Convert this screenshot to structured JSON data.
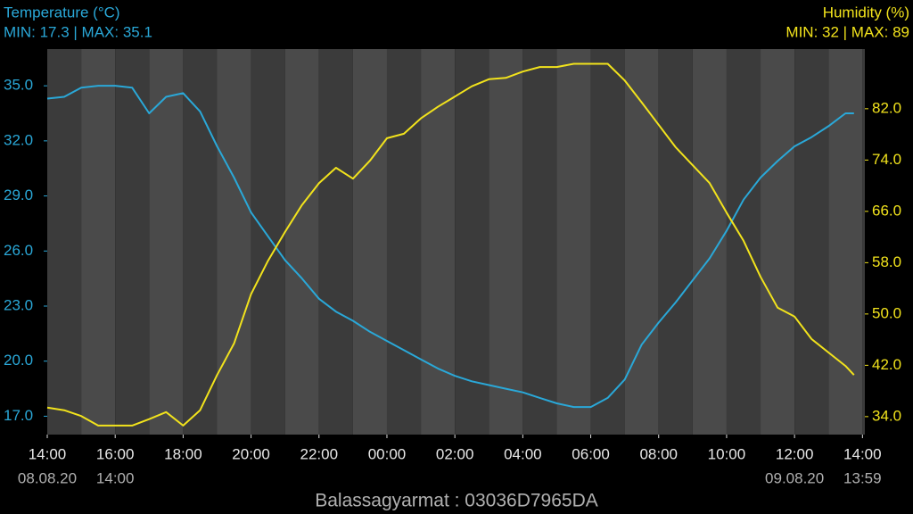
{
  "chart_data": {
    "type": "line",
    "title": "Temperature (°C)",
    "subtitle": "MIN: 17.3 | MAX: 35.1",
    "y2_title": "Humidity (%)",
    "y2_subtitle": "MIN: 32 | MAX: 89",
    "footer": "Balassagyarmat : 03036D7965DA",
    "x": [
      0,
      0.5,
      1,
      1.5,
      2,
      2.5,
      3,
      3.5,
      4,
      4.5,
      5,
      5.5,
      6,
      6.5,
      7,
      7.5,
      8,
      8.5,
      9,
      9.5,
      10,
      10.5,
      11,
      11.5,
      12,
      12.5,
      13,
      13.5,
      14,
      14.5,
      15,
      15.5,
      16,
      16.5,
      17,
      17.5,
      18,
      18.5,
      19,
      19.5,
      20,
      20.5,
      21,
      21.5,
      22,
      22.5,
      23,
      23.5,
      23.75
    ],
    "series": [
      {
        "name": "Temperature (°C)",
        "color": "#2aa8d8",
        "axis": "y",
        "values": [
          34.3,
          34.4,
          34.9,
          35.0,
          35.0,
          34.9,
          33.5,
          34.4,
          34.6,
          33.6,
          31.7,
          30.0,
          28.1,
          26.8,
          25.5,
          24.5,
          23.4,
          22.7,
          22.2,
          21.6,
          21.1,
          20.6,
          20.1,
          19.6,
          19.2,
          18.9,
          18.7,
          18.5,
          18.3,
          18.0,
          17.7,
          17.5,
          17.5,
          18.0,
          19.0,
          20.9,
          22.1,
          23.2,
          24.4,
          25.6,
          27.1,
          28.8,
          30.0,
          30.9,
          31.7,
          32.2,
          32.8,
          33.5,
          33.5
        ]
      },
      {
        "name": "Humidity (%)",
        "color": "#f2e31c",
        "axis": "y2",
        "values": [
          35.4,
          35.0,
          34.1,
          32.6,
          32.6,
          32.6,
          33.6,
          34.7,
          32.6,
          35.0,
          40.5,
          45.4,
          53.1,
          58.3,
          62.8,
          67.0,
          70.4,
          72.8,
          71.1,
          73.9,
          77.4,
          78.1,
          80.5,
          82.3,
          83.9,
          85.5,
          86.6,
          86.8,
          87.8,
          88.5,
          88.5,
          89.0,
          89.0,
          89.0,
          86.4,
          83.0,
          79.5,
          76.0,
          73.2,
          70.4,
          65.8,
          61.4,
          55.8,
          51.0,
          49.6,
          46.1,
          44.0,
          41.9,
          40.5
        ]
      }
    ],
    "xlim": [
      0,
      24.07
    ],
    "xticks": [
      {
        "value": 0,
        "label": "14:00"
      },
      {
        "value": 2,
        "label": "16:00"
      },
      {
        "value": 4,
        "label": "18:00"
      },
      {
        "value": 6,
        "label": "20:00"
      },
      {
        "value": 8,
        "label": "22:00"
      },
      {
        "value": 10,
        "label": "00:00"
      },
      {
        "value": 12,
        "label": "02:00"
      },
      {
        "value": 14,
        "label": "04:00"
      },
      {
        "value": 16,
        "label": "06:00"
      },
      {
        "value": 18,
        "label": "08:00"
      },
      {
        "value": 20,
        "label": "10:00"
      },
      {
        "value": 22,
        "label": "12:00"
      },
      {
        "value": 24,
        "label": "14:00"
      }
    ],
    "x_sublabels": [
      {
        "value": 0,
        "label": "08.08.20"
      },
      {
        "value": 2,
        "label": "14:00"
      },
      {
        "value": 22,
        "label": "09.08.20"
      },
      {
        "value": 24,
        "label": "13:59"
      }
    ],
    "ylim": [
      16,
      37
    ],
    "yticks": [
      {
        "value": 17,
        "label": "17.0"
      },
      {
        "value": 20,
        "label": "20.0"
      },
      {
        "value": 23,
        "label": "23.0"
      },
      {
        "value": 26,
        "label": "26.0"
      },
      {
        "value": 29,
        "label": "29.0"
      },
      {
        "value": 32,
        "label": "32.0"
      },
      {
        "value": 35,
        "label": "35.0"
      }
    ],
    "y2lim": [
      31.2,
      91.3
    ],
    "y2ticks": [
      {
        "value": 34,
        "label": "34.0"
      },
      {
        "value": 42,
        "label": "42.0"
      },
      {
        "value": 50,
        "label": "50.0"
      },
      {
        "value": 58,
        "label": "58.0"
      },
      {
        "value": 66,
        "label": "66.0"
      },
      {
        "value": 74,
        "label": "74.0"
      },
      {
        "value": 82,
        "label": "82.0"
      }
    ]
  }
}
